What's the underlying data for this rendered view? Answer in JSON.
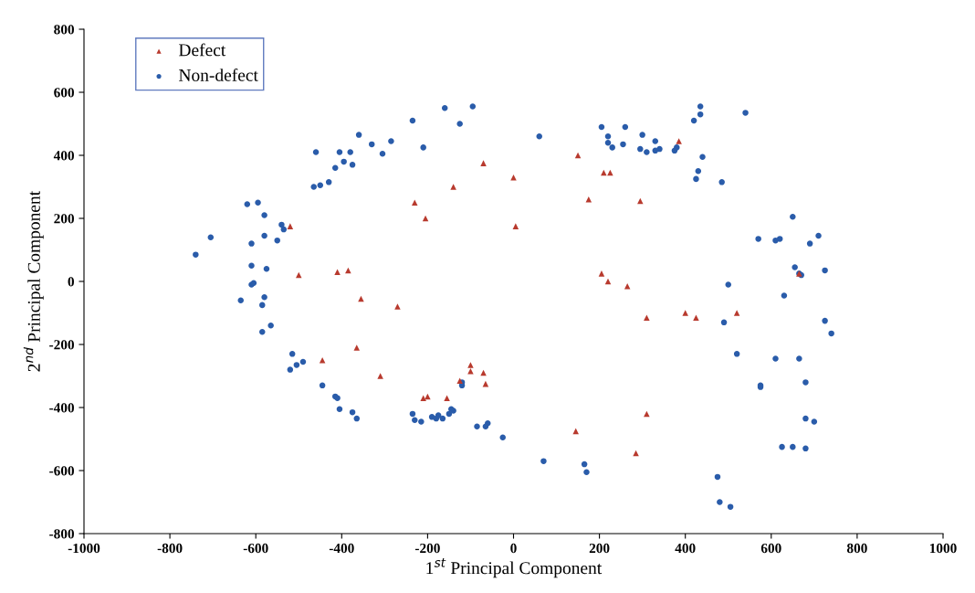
{
  "chart_data": {
    "type": "scatter",
    "xlabel": "1$^{st}$ Principal Component",
    "ylabel": "2$^{nd}$ Principal Component",
    "xlim": [
      -1000,
      1000
    ],
    "ylim": [
      -800,
      800
    ],
    "xticks": [
      -1000,
      -800,
      -600,
      -400,
      -200,
      0,
      200,
      400,
      600,
      800,
      1000
    ],
    "yticks": [
      -800,
      -600,
      -400,
      -200,
      0,
      200,
      400,
      600,
      800
    ],
    "grid": false,
    "legend": "top left",
    "series": [
      {
        "name": "Defect",
        "color": "#b83a2e",
        "marker": "triangle",
        "x": [
          -520,
          -500,
          -410,
          -385,
          -355,
          -270,
          -365,
          -310,
          -445,
          -230,
          -205,
          -140,
          -70,
          0,
          5,
          -100,
          -100,
          -70,
          -65,
          -210,
          -200,
          -155,
          -125,
          150,
          175,
          210,
          225,
          295,
          385,
          205,
          220,
          265,
          310,
          400,
          425,
          520,
          665,
          310,
          145,
          285
        ],
        "values": [
          175,
          20,
          30,
          35,
          -55,
          -80,
          -210,
          -300,
          -250,
          250,
          200,
          300,
          375,
          330,
          175,
          -265,
          -285,
          -290,
          -325,
          -370,
          -365,
          -370,
          -315,
          400,
          260,
          345,
          345,
          255,
          445,
          25,
          0,
          -15,
          -115,
          -100,
          -115,
          -100,
          25,
          -420,
          -475,
          -545
        ]
      },
      {
        "name": "Non-defect",
        "color": "#2a5caa",
        "marker": "circle",
        "x": [
          -740,
          -705,
          -620,
          -595,
          -610,
          -580,
          -580,
          -550,
          -540,
          -535,
          -610,
          -575,
          -610,
          -605,
          -580,
          -585,
          -635,
          -585,
          -565,
          -520,
          -515,
          -505,
          -490,
          -445,
          -415,
          -410,
          -405,
          -375,
          -365,
          -465,
          -450,
          -430,
          -415,
          -395,
          -375,
          -380,
          -405,
          -460,
          -360,
          -330,
          -305,
          -285,
          -235,
          -210,
          -160,
          -125,
          -95,
          -235,
          -230,
          -215,
          -190,
          -180,
          -175,
          -165,
          -150,
          -140,
          -145,
          -120,
          -120,
          -85,
          -60,
          -65,
          -25,
          70,
          165,
          170,
          60,
          205,
          220,
          220,
          230,
          260,
          255,
          295,
          300,
          310,
          330,
          330,
          340,
          375,
          380,
          420,
          435,
          435,
          440,
          430,
          425,
          485,
          540,
          570,
          610,
          620,
          650,
          655,
          665,
          670,
          690,
          710,
          725,
          725,
          740,
          630,
          500,
          490,
          520,
          610,
          665,
          680,
          575,
          575,
          625,
          650,
          680,
          680,
          700,
          475,
          480,
          505
        ],
        "values": [
          85,
          140,
          245,
          250,
          120,
          210,
          145,
          130,
          180,
          165,
          50,
          40,
          -10,
          -5,
          -50,
          -75,
          -60,
          -160,
          -140,
          -280,
          -230,
          -265,
          -255,
          -330,
          -365,
          -370,
          -405,
          -415,
          -435,
          300,
          305,
          315,
          360,
          380,
          370,
          410,
          410,
          410,
          465,
          435,
          405,
          445,
          510,
          425,
          550,
          500,
          555,
          -420,
          -440,
          -445,
          -430,
          -435,
          -425,
          -435,
          -420,
          -410,
          -405,
          -320,
          -330,
          -460,
          -450,
          -460,
          -495,
          -570,
          -580,
          -605,
          460,
          490,
          460,
          440,
          425,
          490,
          435,
          420,
          465,
          410,
          445,
          415,
          420,
          415,
          425,
          510,
          555,
          530,
          395,
          350,
          325,
          315,
          535,
          135,
          130,
          135,
          205,
          45,
          25,
          20,
          120,
          145,
          35,
          -125,
          -165,
          -45,
          -10,
          -130,
          -230,
          -245,
          -245,
          -320,
          -330,
          -335,
          -525,
          -525,
          -530,
          -435,
          -445,
          -620,
          -700,
          -715
        ]
      }
    ]
  }
}
